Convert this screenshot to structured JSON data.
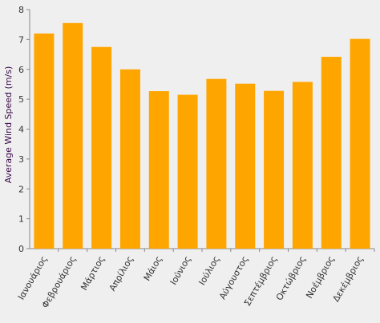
{
  "chart_data": {
    "type": "bar",
    "title": "",
    "xlabel": "",
    "ylabel": "Average Wind Speed (m/s)",
    "ylim": [
      0,
      8
    ],
    "yticks": [
      0,
      1,
      2,
      3,
      4,
      5,
      6,
      7,
      8
    ],
    "grid": false,
    "bar_color": "#FFA500",
    "axis_color": "#888888",
    "ylabel_color": "#3a0a4a",
    "categories": [
      "Ιανουάριος",
      "Φεβρουάριος",
      "Μάρτιος",
      "Απρίλιος",
      "Μάιος",
      "Ιούνιος",
      "Ιούλιος",
      "Αύγουστος",
      "Σεπτέμβριος",
      "Οκτώβριος",
      "Νοέμβριος",
      "Δεκέμβριος"
    ],
    "values": [
      7.2,
      7.55,
      6.75,
      6.0,
      5.27,
      5.15,
      5.68,
      5.52,
      5.28,
      5.58,
      6.42,
      7.02
    ]
  }
}
